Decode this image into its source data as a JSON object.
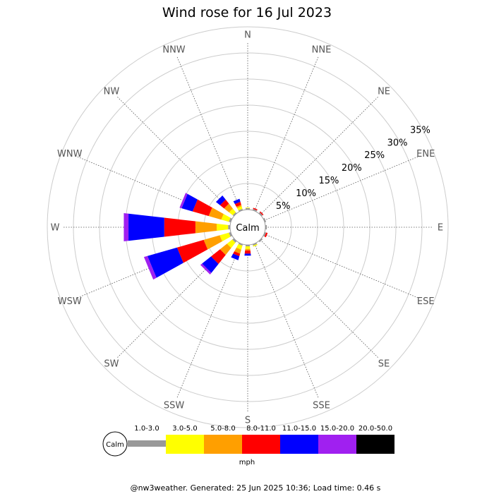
{
  "title": "Wind rose for 16 Jul 2023",
  "footer": "@nw3weather. Generated: 25 Jun 2025 10:36; Load time: 0.46 s",
  "calm_label": "Calm",
  "unit_label": "mph",
  "chart_data": {
    "type": "windrose",
    "title": "Wind rose for 16 Jul 2023",
    "directions": [
      "N",
      "NNE",
      "NE",
      "ENE",
      "E",
      "ESE",
      "SE",
      "SSE",
      "S",
      "SSW",
      "SW",
      "WSW",
      "W",
      "WNW",
      "NW",
      "NNW"
    ],
    "rings": [
      5,
      10,
      15,
      20,
      25,
      30,
      35
    ],
    "ring_labels": [
      "5%",
      "10%",
      "15%",
      "20%",
      "25%",
      "30%",
      "35%"
    ],
    "speed_bins": [
      {
        "label": "1.0-3.0",
        "color": "#999999"
      },
      {
        "label": "3.0-5.0",
        "color": "#ffff00"
      },
      {
        "label": "5.0-8.0",
        "color": "#ff9f00"
      },
      {
        "label": "8.0-11.0",
        "color": "#ff0000"
      },
      {
        "label": "11.0-15.0",
        "color": "#0000ff"
      },
      {
        "label": "15.0-20.0",
        "color": "#a020f0"
      },
      {
        "label": "20.0-50.0",
        "color": "#000000"
      }
    ],
    "frequencies": {
      "N": [
        0.3,
        0.1,
        0.0,
        0.0,
        0.0,
        0.0,
        0.0
      ],
      "NNE": [
        0.3,
        0.0,
        0.0,
        0.2,
        0.0,
        0.0,
        0.0
      ],
      "NE": [
        0.3,
        0.0,
        0.0,
        0.2,
        0.0,
        0.0,
        0.0
      ],
      "ENE": [
        0.3,
        0.0,
        0.0,
        0.0,
        0.0,
        0.0,
        0.0
      ],
      "E": [
        0.3,
        0.0,
        0.0,
        0.0,
        0.0,
        0.0,
        0.0
      ],
      "ESE": [
        0.3,
        0.0,
        0.0,
        0.3,
        0.0,
        0.0,
        0.0
      ],
      "SE": [
        0.3,
        0.0,
        0.0,
        0.0,
        0.0,
        0.0,
        0.0
      ],
      "SSE": [
        0.3,
        0.2,
        0.0,
        0.0,
        0.0,
        0.0,
        0.0
      ],
      "S": [
        0.3,
        0.5,
        0.3,
        0.6,
        0.4,
        0.0,
        0.0
      ],
      "SSW": [
        0.3,
        0.8,
        0.8,
        0.5,
        0.8,
        0.0,
        0.0
      ],
      "SW": [
        0.4,
        1.3,
        1.7,
        2.2,
        2.2,
        0.4,
        0.0
      ],
      "WSW": [
        0.4,
        1.8,
        3.2,
        5.3,
        5.9,
        0.7,
        0.0
      ],
      "W": [
        0.4,
        2.2,
        4.1,
        6.0,
        6.9,
        0.9,
        0.0
      ],
      "WNW": [
        0.4,
        1.5,
        2.5,
        3.2,
        2.2,
        0.4,
        0.0
      ],
      "NW": [
        0.3,
        0.9,
        1.2,
        1.0,
        1.0,
        0.0,
        0.0
      ],
      "NNW": [
        0.3,
        0.5,
        0.3,
        0.6,
        0.6,
        0.0,
        0.0
      ]
    }
  }
}
